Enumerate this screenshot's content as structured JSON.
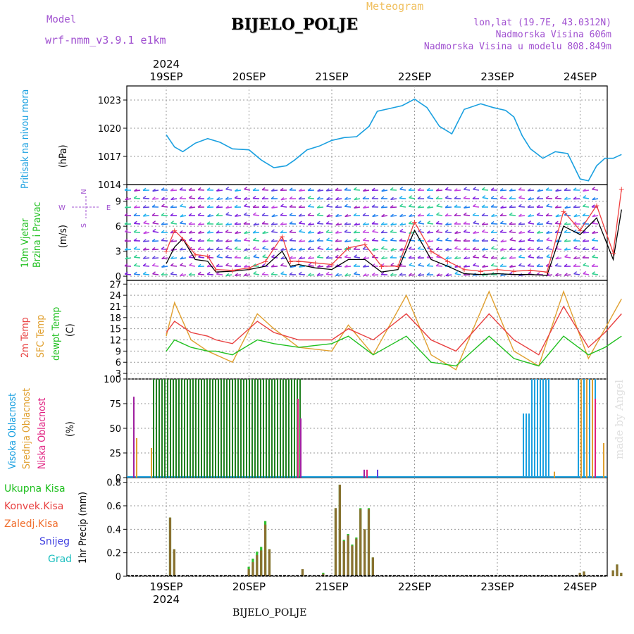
{
  "header": {
    "model_label": "Model",
    "model_name": "wrf-nmm_v3.9.1  e1km",
    "title": "BIJELO_POLJE",
    "subtitle": "Meteogram",
    "lonlat": "lon,lat (19.7E, 43.0312N)",
    "altitude": "Nadmorska Visina 606m",
    "model_altitude": "Nadmorska Visina u modelu 808.849m",
    "footer_station": "BIJELO_POLJE",
    "credit": "made by Angel",
    "year_label": "2024"
  },
  "colors": {
    "pressure": "#1aa0e0",
    "temp2m": "#e84040",
    "sfc": "#e0a030",
    "dewpoint": "#20c020",
    "precip": "#208020",
    "conv": "#8a7030"
  },
  "chart_data": [
    {
      "type": "line",
      "panel": "pressure",
      "ylabel": "Pritisak na nivou mora",
      "units": "(hPa)",
      "x_dates": [
        "19SEP",
        "20SEP",
        "21SEP",
        "22SEP",
        "23SEP",
        "24SEP"
      ],
      "yticks": [
        1014,
        1017,
        1020,
        1023
      ],
      "ylim": [
        1014,
        1024.5
      ],
      "grid": true,
      "series": [
        {
          "x": [
            0,
            0.1,
            0.2,
            0.35,
            0.5,
            0.65,
            0.8,
            1.0,
            1.15,
            1.3,
            1.45,
            1.55,
            1.7,
            1.85,
            2.0,
            2.15,
            2.3,
            2.45,
            2.55,
            2.7,
            2.85,
            3.0,
            3.15,
            3.3,
            3.45,
            3.6,
            3.8,
            3.95,
            4.1,
            4.2,
            4.3,
            4.4,
            4.55,
            4.7,
            4.85,
            5.0,
            5.1,
            5.2,
            5.3,
            5.4,
            5.5
          ],
          "y": [
            1019.3,
            1018.0,
            1017.5,
            1018.4,
            1018.9,
            1018.5,
            1017.8,
            1017.7,
            1016.6,
            1015.8,
            1016.0,
            1016.6,
            1017.7,
            1018.1,
            1018.7,
            1019.0,
            1019.1,
            1020.2,
            1021.8,
            1022.1,
            1022.4,
            1023.1,
            1022.2,
            1020.2,
            1019.4,
            1022.0,
            1022.6,
            1022.2,
            1021.9,
            1021.2,
            1019.2,
            1017.8,
            1016.8,
            1017.5,
            1017.3,
            1014.6,
            1014.4,
            1016.0,
            1016.8,
            1016.8,
            1017.2
          ]
        }
      ]
    },
    {
      "type": "line",
      "panel": "wind",
      "ylabel": "10m Vjetar Brzina i Pravac",
      "units": "(m/s)",
      "compass": {
        "n": "N",
        "s": "S",
        "e": "E",
        "w": "W"
      },
      "yticks": [
        0,
        3,
        6,
        9
      ],
      "ylim": [
        -0.5,
        11
      ],
      "grid": true,
      "series": [
        {
          "name": "speed",
          "x": [
            0,
            0.1,
            0.2,
            0.35,
            0.5,
            0.6,
            0.8,
            1.0,
            1.2,
            1.4,
            1.5,
            1.6,
            1.8,
            2.0,
            2.2,
            2.4,
            2.6,
            2.8,
            3.0,
            3.2,
            3.4,
            3.6,
            3.8,
            4.0,
            4.2,
            4.4,
            4.6,
            4.8,
            5.0,
            5.2,
            5.4,
            5.5
          ],
          "y": [
            1.5,
            3.5,
            4.5,
            2.0,
            1.8,
            0.5,
            0.6,
            0.8,
            1.2,
            3.0,
            1.2,
            1.4,
            1.0,
            0.8,
            2.0,
            2.0,
            0.5,
            0.8,
            5.5,
            2.0,
            1.2,
            0.3,
            0.2,
            0.3,
            0.2,
            0.2,
            0.1,
            6.0,
            5.0,
            7.0,
            2.0,
            8.0
          ]
        },
        {
          "name": "gust",
          "x": [
            0,
            0.1,
            0.2,
            0.35,
            0.5,
            0.6,
            0.8,
            1.0,
            1.2,
            1.4,
            1.5,
            1.6,
            1.8,
            2.0,
            2.2,
            2.4,
            2.6,
            2.8,
            3.0,
            3.2,
            3.4,
            3.6,
            3.8,
            4.0,
            4.2,
            4.4,
            4.6,
            4.8,
            5.0,
            5.2,
            5.4,
            5.5
          ],
          "y": [
            3.0,
            5.5,
            4.5,
            2.6,
            2.4,
            0.8,
            0.7,
            1.0,
            1.8,
            4.8,
            1.8,
            1.8,
            1.6,
            1.4,
            3.4,
            3.8,
            1.2,
            1.2,
            6.5,
            3.0,
            1.8,
            0.8,
            0.6,
            0.8,
            0.6,
            0.7,
            0.5,
            7.8,
            5.5,
            8.5,
            2.8,
            10.5
          ]
        }
      ]
    },
    {
      "type": "line",
      "panel": "temperature",
      "ylabel_lines": [
        "2m Temp",
        "SFC Temp",
        "dewpt Temp"
      ],
      "units": "(C)",
      "yticks": [
        3,
        6,
        9,
        12,
        15,
        18,
        21,
        24,
        27
      ],
      "ylim": [
        1.5,
        28
      ],
      "grid": true,
      "series": [
        {
          "name": "2m Temp",
          "x": [
            0,
            0.1,
            0.3,
            0.5,
            0.6,
            0.8,
            1.1,
            1.3,
            1.6,
            2.0,
            2.2,
            2.5,
            2.9,
            3.2,
            3.5,
            3.9,
            4.2,
            4.5,
            4.8,
            5.1,
            5.3,
            5.5
          ],
          "y": [
            14,
            17,
            14,
            13,
            12,
            11,
            17,
            14,
            12,
            12,
            15,
            12,
            19,
            12,
            9,
            19,
            12,
            8,
            21,
            10,
            14,
            19
          ]
        },
        {
          "name": "SFC Temp",
          "x": [
            0,
            0.1,
            0.3,
            0.5,
            0.6,
            0.8,
            1.1,
            1.3,
            1.6,
            2.0,
            2.2,
            2.5,
            2.9,
            3.2,
            3.5,
            3.9,
            4.2,
            4.5,
            4.8,
            5.1,
            5.3,
            5.5
          ],
          "y": [
            13,
            22,
            12,
            9,
            8,
            6,
            19,
            15,
            10,
            9,
            16,
            8,
            24,
            8,
            4,
            25,
            9,
            5,
            25,
            7,
            15,
            23
          ]
        },
        {
          "name": "dewpt Temp",
          "x": [
            0,
            0.1,
            0.3,
            0.5,
            0.6,
            0.8,
            1.1,
            1.3,
            1.6,
            2.0,
            2.2,
            2.5,
            2.9,
            3.2,
            3.5,
            3.9,
            4.2,
            4.5,
            4.8,
            5.1,
            5.3,
            5.5
          ],
          "y": [
            9,
            12,
            10,
            9,
            9,
            8,
            12,
            11,
            10,
            11,
            13,
            8,
            13,
            6,
            5,
            13,
            7,
            5,
            13,
            8,
            10,
            13
          ]
        }
      ]
    },
    {
      "type": "bar",
      "panel": "cloud",
      "ylabel_lines": [
        "Visoka Oblacnost",
        "Srednja Oblacnost",
        "Niska Oblacnost"
      ],
      "units": "(%)",
      "yticks": [
        0,
        25,
        50,
        75,
        100
      ],
      "ylim": [
        0,
        100
      ],
      "grid": true
    },
    {
      "type": "bar",
      "panel": "precip",
      "legend": [
        "Ukupna Kisa",
        "Konvek.Kisa",
        "Zaledj.Kisa",
        "Snijeg",
        "Grad"
      ],
      "ylabel": "1hr Precip (mm)",
      "yticks": [
        0,
        0.2,
        0.4,
        0.6,
        0.8
      ],
      "ylim": [
        0,
        0.84
      ],
      "grid": true,
      "bars": [
        {
          "x": 0.05,
          "total": 0.5,
          "conv": 0.5
        },
        {
          "x": 0.1,
          "total": 0.23,
          "conv": 0.23
        },
        {
          "x": 1.0,
          "total": 0.08,
          "conv": 0.06
        },
        {
          "x": 1.05,
          "total": 0.15,
          "conv": 0.12
        },
        {
          "x": 1.1,
          "total": 0.21,
          "conv": 0.18
        },
        {
          "x": 1.15,
          "total": 0.25,
          "conv": 0.22
        },
        {
          "x": 1.2,
          "total": 0.47,
          "conv": 0.44
        },
        {
          "x": 1.25,
          "total": 0.23,
          "conv": 0.23
        },
        {
          "x": 1.65,
          "total": 0.06,
          "conv": 0.06
        },
        {
          "x": 1.9,
          "total": 0.03,
          "conv": 0.02
        },
        {
          "x": 2.05,
          "total": 0.58,
          "conv": 0.58
        },
        {
          "x": 2.1,
          "total": 0.78,
          "conv": 0.78
        },
        {
          "x": 2.15,
          "total": 0.31,
          "conv": 0.3
        },
        {
          "x": 2.2,
          "total": 0.36,
          "conv": 0.35
        },
        {
          "x": 2.25,
          "total": 0.27,
          "conv": 0.26
        },
        {
          "x": 2.3,
          "total": 0.33,
          "conv": 0.32
        },
        {
          "x": 2.35,
          "total": 0.58,
          "conv": 0.57
        },
        {
          "x": 2.4,
          "total": 0.4,
          "conv": 0.4
        },
        {
          "x": 2.45,
          "total": 0.58,
          "conv": 0.57
        },
        {
          "x": 2.5,
          "total": 0.16,
          "conv": 0.16
        },
        {
          "x": 5.0,
          "total": 0.03,
          "conv": 0.03
        },
        {
          "x": 5.05,
          "total": 0.04,
          "conv": 0.04
        },
        {
          "x": 5.4,
          "total": 0.05,
          "conv": 0.05
        },
        {
          "x": 5.45,
          "total": 0.1,
          "conv": 0.1
        },
        {
          "x": 5.5,
          "total": 0.03,
          "conv": 0.03
        }
      ]
    }
  ]
}
